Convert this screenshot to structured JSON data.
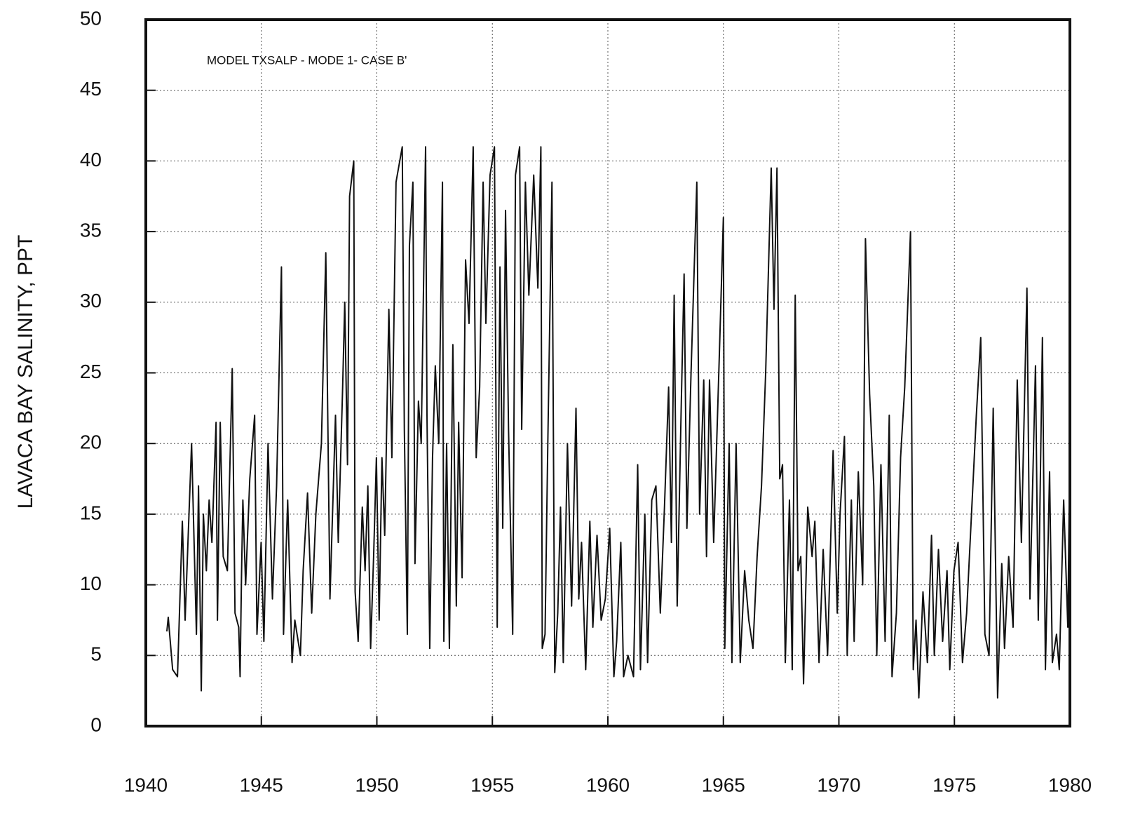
{
  "chart_data": {
    "type": "line",
    "annotation": "MODEL TXSALP - MODE 1- CASE B'",
    "y_label": "LAVACA BAY SALINITY, PPT",
    "color": "#111111",
    "grid": true,
    "xlim": [
      1940,
      1980
    ],
    "xticks": [
      1940,
      1945,
      1950,
      1955,
      1960,
      1965,
      1970,
      1975,
      1980
    ],
    "ylim": [
      0,
      50
    ],
    "yticks": [
      0,
      5,
      10,
      15,
      20,
      25,
      30,
      35,
      40,
      45,
      50
    ],
    "x": [
      1940.91,
      1940.97,
      1941.16,
      1941.37,
      1941.58,
      1941.7,
      1941.98,
      1942.19,
      1942.28,
      1942.4,
      1942.49,
      1942.62,
      1942.74,
      1942.86,
      1943.04,
      1943.1,
      1943.22,
      1943.35,
      1943.53,
      1943.74,
      1943.86,
      1944.02,
      1944.08,
      1944.14,
      1944.2,
      1944.32,
      1944.5,
      1944.71,
      1944.81,
      1944.99,
      1945.11,
      1945.29,
      1945.48,
      1945.66,
      1945.87,
      1945.96,
      1946.14,
      1946.33,
      1946.45,
      1946.69,
      1946.81,
      1947.0,
      1947.18,
      1947.36,
      1947.6,
      1947.79,
      1947.97,
      1948.21,
      1948.33,
      1948.52,
      1948.61,
      1948.73,
      1948.82,
      1949.0,
      1949.06,
      1949.19,
      1949.37,
      1949.49,
      1949.61,
      1949.73,
      1949.86,
      1949.98,
      1950.1,
      1950.22,
      1950.34,
      1950.52,
      1950.65,
      1950.83,
      1951.1,
      1951.19,
      1951.32,
      1951.41,
      1951.56,
      1951.65,
      1951.8,
      1951.92,
      1952.11,
      1952.17,
      1952.29,
      1952.41,
      1952.53,
      1952.68,
      1952.84,
      1952.9,
      1953.02,
      1953.14,
      1953.29,
      1953.44,
      1953.54,
      1953.69,
      1953.84,
      1953.99,
      1954.17,
      1954.3,
      1954.45,
      1954.6,
      1954.72,
      1954.9,
      1955.09,
      1955.21,
      1955.33,
      1955.45,
      1955.57,
      1955.7,
      1955.88,
      1956.0,
      1956.18,
      1956.27,
      1956.43,
      1956.58,
      1956.79,
      1956.97,
      1957.1,
      1957.16,
      1957.28,
      1957.4,
      1957.58,
      1957.7,
      1957.83,
      1957.95,
      1958.07,
      1958.25,
      1958.43,
      1958.62,
      1958.74,
      1958.86,
      1959.04,
      1959.22,
      1959.35,
      1959.53,
      1959.71,
      1959.89,
      1960.08,
      1960.26,
      1960.38,
      1960.56,
      1960.68,
      1960.87,
      1961.11,
      1961.29,
      1961.41,
      1961.6,
      1961.72,
      1961.9,
      1962.08,
      1962.27,
      1962.45,
      1962.63,
      1962.75,
      1962.87,
      1963.0,
      1963.18,
      1963.3,
      1963.42,
      1963.6,
      1963.85,
      1963.97,
      1964.15,
      1964.27,
      1964.4,
      1964.58,
      1964.82,
      1965.0,
      1965.06,
      1965.25,
      1965.37,
      1965.55,
      1965.73,
      1965.92,
      1966.1,
      1966.28,
      1966.46,
      1966.65,
      1966.83,
      1967.07,
      1967.19,
      1967.32,
      1967.44,
      1967.56,
      1967.68,
      1967.86,
      1967.98,
      1968.11,
      1968.23,
      1968.35,
      1968.47,
      1968.65,
      1968.84,
      1968.96,
      1969.14,
      1969.32,
      1969.51,
      1969.75,
      1969.93,
      1970.05,
      1970.24,
      1970.36,
      1970.54,
      1970.66,
      1970.84,
      1971.03,
      1971.15,
      1971.33,
      1971.51,
      1971.64,
      1971.82,
      1972.0,
      1972.18,
      1972.3,
      1972.49,
      1972.67,
      1972.85,
      1973.1,
      1973.22,
      1973.34,
      1973.46,
      1973.64,
      1973.83,
      1974.01,
      1974.13,
      1974.31,
      1974.49,
      1974.68,
      1974.8,
      1974.98,
      1975.16,
      1975.35,
      1975.53,
      1975.71,
      1975.95,
      1976.14,
      1976.32,
      1976.5,
      1976.68,
      1976.87,
      1977.05,
      1977.17,
      1977.35,
      1977.54,
      1977.72,
      1977.9,
      1978.14,
      1978.27,
      1978.51,
      1978.63,
      1978.81,
      1978.94,
      1979.12,
      1979.24,
      1979.42,
      1979.54,
      1979.73,
      1979.91,
      1980.0
    ],
    "values": [
      6.7,
      7.7,
      4,
      3.5,
      14.5,
      7.5,
      20,
      6.5,
      17,
      2.5,
      15,
      11,
      16,
      13,
      21.5,
      7.5,
      21.5,
      12,
      11,
      25.3,
      8,
      7,
      3.5,
      10.5,
      16,
      10,
      17.5,
      22,
      6.5,
      13,
      6,
      20,
      9,
      17,
      32.5,
      6.5,
      16,
      4.5,
      7.5,
      5,
      11,
      16.5,
      8,
      15,
      20,
      33.5,
      9,
      22,
      13,
      24,
      30,
      18.5,
      37.5,
      40,
      9.5,
      6,
      15.5,
      11,
      17,
      5.5,
      12,
      19,
      7.5,
      19,
      13.5,
      29.5,
      19,
      38.5,
      41,
      21,
      6.5,
      34,
      38.5,
      11.5,
      23,
      20,
      41,
      22,
      5.5,
      19,
      25.5,
      20,
      38.5,
      6,
      20,
      5.5,
      27,
      8.5,
      21.5,
      10.5,
      33,
      28.5,
      41,
      19,
      24,
      38.5,
      28.5,
      39,
      41,
      7,
      32.5,
      14,
      36.5,
      21,
      6.5,
      39,
      41,
      21,
      38.5,
      30.5,
      39,
      31,
      41,
      5.5,
      6.5,
      20,
      38.5,
      3.8,
      8,
      15.5,
      4.5,
      20,
      8.5,
      22.5,
      9,
      13,
      4,
      14.5,
      7,
      13.5,
      7.5,
      9,
      14,
      3.5,
      6,
      13,
      3.5,
      5,
      3.5,
      18.5,
      4,
      15,
      4.5,
      16,
      17,
      8,
      15.5,
      24,
      13,
      30.5,
      8.5,
      23,
      32,
      14,
      25,
      38.5,
      15,
      24.5,
      12,
      24.5,
      13,
      26,
      36,
      5.5,
      20,
      4.5,
      20,
      4.5,
      11,
      7.5,
      5.5,
      12,
      17,
      25,
      39.5,
      29.5,
      39.5,
      17.5,
      18.5,
      4.5,
      16,
      4,
      30.5,
      11,
      12,
      3,
      15.5,
      12,
      14.5,
      4.5,
      12.5,
      5,
      19.5,
      8,
      15,
      20.5,
      5,
      16,
      6,
      18,
      10,
      34.5,
      23.5,
      17,
      5,
      18.5,
      6,
      22,
      3.5,
      8,
      19,
      24,
      35,
      4,
      7.5,
      2,
      9.5,
      4.5,
      13.5,
      5,
      12.5,
      6,
      11,
      4,
      11,
      13,
      4.5,
      8,
      14,
      22,
      27.5,
      6.5,
      5,
      22.5,
      2,
      11.5,
      5.5,
      12,
      7,
      24.5,
      13,
      31,
      9,
      25.5,
      7.5,
      27.5,
      4,
      18,
      4.5,
      6.5,
      4,
      16,
      7,
      20
    ]
  }
}
